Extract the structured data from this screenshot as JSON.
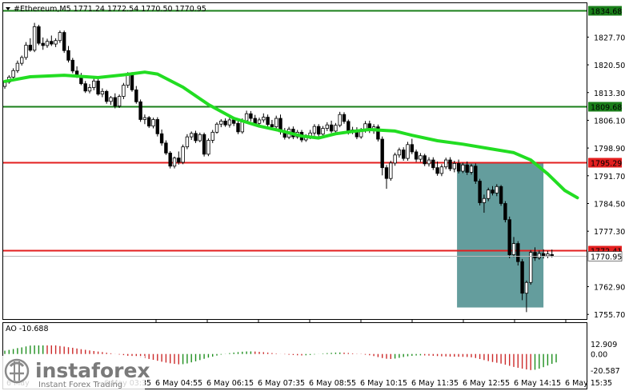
{
  "title": "#Ethereum,M5  1771.24 1772.54 1770.50 1770.95",
  "watermark": {
    "brand": "instaforex",
    "tagline": "Instant Forex Trading"
  },
  "colors": {
    "bull_candle": "#ffffff",
    "bear_candle": "#000000",
    "ma_line": "#22dd22",
    "green_level": "#1a7f1a",
    "red_level": "#e31e1e",
    "highlight_box": "#4f8f8f",
    "ao_up": "#1f8f1f",
    "ao_down": "#cc2a2a",
    "label_red_bg": "#e31e1e",
    "label_green_bg": "#1a7f1a"
  },
  "chart_data": [
    {
      "type": "candlestick",
      "title": "#Ethereum,M5  1771.24 1772.54 1770.50 1770.95",
      "symbol": "#Ethereum",
      "timeframe": "M5",
      "ohlc_header": {
        "open": 1771.24,
        "high": 1772.54,
        "low": 1770.5,
        "close": 1770.95
      },
      "y_ticks": [
        "1827.70",
        "1820.50",
        "1813.30",
        "1806.10",
        "1798.90",
        "1791.70",
        "1784.50",
        "1777.30",
        "1762.90",
        "1755.70"
      ],
      "x_ticks": [
        "6 May 04:55",
        "6 May 06:15",
        "6 May 07:35",
        "6 May 08:55",
        "6 May 10:15",
        "6 May 11:35",
        "6 May 12:55",
        "6 May 14:15",
        "6 May 15:35"
      ],
      "x_ticks_partial": [
        "6 May",
        "6 May 03:35"
      ],
      "ylim": [
        1754.5,
        1836.5
      ],
      "levels": [
        {
          "price": 1834.68,
          "label": "1834.68",
          "color": "green"
        },
        {
          "price": 1809.68,
          "label": "1809.68",
          "color": "green"
        },
        {
          "price": 1795.29,
          "label": "1795.29",
          "color": "red"
        },
        {
          "price": 1772.41,
          "label": "1772.41",
          "color": "red"
        }
      ],
      "current_price": {
        "value": 1770.95,
        "label": "1770.95"
      },
      "moving_average": [
        [
          0,
          1816.2
        ],
        [
          6,
          1817.4
        ],
        [
          14,
          1817.8
        ],
        [
          22,
          1817.2
        ],
        [
          28,
          1817.9
        ],
        [
          33,
          1818.6
        ],
        [
          36,
          1818.1
        ],
        [
          42,
          1814.7
        ],
        [
          48,
          1810.2
        ],
        [
          54,
          1806.6
        ],
        [
          60,
          1804.6
        ],
        [
          65,
          1803.4
        ],
        [
          70,
          1802.0
        ],
        [
          74,
          1801.5
        ],
        [
          78,
          1802.6
        ],
        [
          82,
          1803.2
        ],
        [
          86,
          1803.7
        ],
        [
          92,
          1803.3
        ],
        [
          96,
          1802.2
        ],
        [
          102,
          1800.8
        ],
        [
          108,
          1799.9
        ],
        [
          114,
          1798.8
        ],
        [
          120,
          1797.7
        ],
        [
          124,
          1795.8
        ],
        [
          128,
          1792.2
        ],
        [
          132,
          1787.9
        ],
        [
          135,
          1786.0
        ]
      ],
      "candles": [
        [
          0,
          1814.9,
          1816.4,
          1814.3,
          1816.0
        ],
        [
          1,
          1816.0,
          1817.8,
          1815.6,
          1817.3
        ],
        [
          2,
          1817.3,
          1819.6,
          1816.8,
          1819.0
        ],
        [
          3,
          1819.0,
          1821.6,
          1818.4,
          1820.9
        ],
        [
          4,
          1820.9,
          1822.9,
          1820.3,
          1822.4
        ],
        [
          5,
          1822.4,
          1826.4,
          1821.8,
          1825.6
        ],
        [
          6,
          1825.6,
          1827.4,
          1823.9,
          1824.3
        ],
        [
          7,
          1824.3,
          1831.4,
          1823.8,
          1830.4
        ],
        [
          8,
          1830.4,
          1830.9,
          1825.6,
          1826.1
        ],
        [
          9,
          1826.1,
          1827.6,
          1824.4,
          1825.5
        ],
        [
          10,
          1825.5,
          1827.3,
          1824.9,
          1826.6
        ],
        [
          11,
          1826.6,
          1828.1,
          1825.4,
          1825.9
        ],
        [
          12,
          1825.9,
          1827.4,
          1825.1,
          1826.8
        ],
        [
          13,
          1826.8,
          1829.4,
          1826.2,
          1828.9
        ],
        [
          14,
          1828.9,
          1829.4,
          1823.6,
          1824.2
        ],
        [
          15,
          1824.2,
          1825.4,
          1821.1,
          1821.7
        ],
        [
          16,
          1821.7,
          1822.3,
          1818.3,
          1818.9
        ],
        [
          17,
          1818.9,
          1820.1,
          1817.1,
          1817.7
        ],
        [
          18,
          1817.7,
          1818.4,
          1815.2,
          1815.6
        ],
        [
          19,
          1815.6,
          1816.3,
          1813.2,
          1813.7
        ],
        [
          20,
          1813.7,
          1815.5,
          1813.1,
          1814.6
        ],
        [
          21,
          1814.6,
          1817.2,
          1813.9,
          1816.3
        ],
        [
          22,
          1816.3,
          1817.0,
          1812.5,
          1812.9
        ],
        [
          23,
          1812.9,
          1814.4,
          1812.1,
          1813.6
        ],
        [
          24,
          1813.6,
          1814.0,
          1810.4,
          1811.0
        ],
        [
          25,
          1811.0,
          1812.4,
          1810.1,
          1812.0
        ],
        [
          26,
          1812.0,
          1813.1,
          1809.2,
          1809.8
        ],
        [
          27,
          1809.8,
          1812.8,
          1809.3,
          1812.3
        ],
        [
          28,
          1812.3,
          1815.8,
          1811.6,
          1815.2
        ],
        [
          29,
          1815.2,
          1818.6,
          1814.5,
          1817.9
        ],
        [
          30,
          1817.9,
          1818.6,
          1813.5,
          1814.0
        ],
        [
          31,
          1814.0,
          1815.0,
          1810.4,
          1810.9
        ],
        [
          32,
          1810.9,
          1811.5,
          1805.7,
          1806.3
        ],
        [
          33,
          1806.3,
          1807.6,
          1805.1,
          1806.8
        ],
        [
          34,
          1806.8,
          1807.2,
          1804.1,
          1804.6
        ],
        [
          35,
          1804.6,
          1806.8,
          1804.0,
          1806.3
        ],
        [
          36,
          1806.3,
          1806.9,
          1801.9,
          1802.6
        ],
        [
          37,
          1802.6,
          1803.7,
          1799.5,
          1800.2
        ],
        [
          38,
          1800.2,
          1800.9,
          1797.1,
          1797.6
        ],
        [
          39,
          1797.6,
          1798.1,
          1793.6,
          1794.2
        ],
        [
          40,
          1794.2,
          1796.7,
          1793.6,
          1796.3
        ],
        [
          41,
          1796.3,
          1798.0,
          1794.6,
          1795.2
        ],
        [
          42,
          1795.2,
          1799.8,
          1794.7,
          1799.2
        ],
        [
          43,
          1799.2,
          1802.5,
          1798.6,
          1801.8
        ],
        [
          44,
          1801.8,
          1803.2,
          1801.0,
          1802.7
        ],
        [
          45,
          1802.7,
          1803.4,
          1800.2,
          1800.8
        ],
        [
          46,
          1800.8,
          1802.9,
          1800.4,
          1802.4
        ],
        [
          47,
          1802.4,
          1802.9,
          1796.7,
          1797.3
        ],
        [
          48,
          1797.3,
          1801.4,
          1796.8,
          1800.9
        ],
        [
          49,
          1800.9,
          1803.6,
          1800.2,
          1803.0
        ],
        [
          50,
          1803.0,
          1805.6,
          1802.6,
          1805.1
        ],
        [
          51,
          1805.1,
          1806.4,
          1804.3,
          1805.9
        ],
        [
          52,
          1805.9,
          1806.6,
          1804.4,
          1804.9
        ],
        [
          53,
          1804.9,
          1806.8,
          1804.2,
          1806.2
        ],
        [
          54,
          1806.2,
          1807.0,
          1804.6,
          1805.3
        ],
        [
          55,
          1805.3,
          1805.9,
          1802.5,
          1803.1
        ],
        [
          56,
          1803.1,
          1806.6,
          1802.6,
          1806.0
        ],
        [
          57,
          1806.0,
          1808.6,
          1805.5,
          1807.8
        ],
        [
          58,
          1807.8,
          1808.5,
          1805.8,
          1806.6
        ],
        [
          59,
          1806.6,
          1807.5,
          1804.8,
          1805.3
        ],
        [
          60,
          1805.3,
          1806.8,
          1804.7,
          1806.2
        ],
        [
          61,
          1806.2,
          1807.9,
          1805.5,
          1806.9
        ],
        [
          62,
          1806.9,
          1807.6,
          1804.4,
          1805.0
        ],
        [
          63,
          1805.0,
          1806.2,
          1803.6,
          1804.4
        ],
        [
          64,
          1804.4,
          1807.3,
          1804.0,
          1806.6
        ],
        [
          65,
          1806.6,
          1807.6,
          1802.4,
          1803.1
        ],
        [
          66,
          1803.1,
          1804.1,
          1801.1,
          1801.7
        ],
        [
          67,
          1801.7,
          1804.4,
          1801.2,
          1803.8
        ],
        [
          68,
          1803.8,
          1804.5,
          1801.2,
          1801.8
        ],
        [
          69,
          1801.8,
          1803.6,
          1801.3,
          1803.0
        ],
        [
          70,
          1803.0,
          1803.6,
          1800.4,
          1801.0
        ],
        [
          71,
          1801.0,
          1802.5,
          1800.5,
          1801.9
        ],
        [
          72,
          1801.9,
          1803.6,
          1801.2,
          1802.8
        ],
        [
          73,
          1802.8,
          1805.1,
          1802.1,
          1804.5
        ],
        [
          74,
          1804.5,
          1805.1,
          1801.9,
          1802.5
        ],
        [
          75,
          1802.5,
          1804.6,
          1802.0,
          1804.0
        ],
        [
          76,
          1804.0,
          1805.6,
          1803.3,
          1804.9
        ],
        [
          77,
          1804.9,
          1806.0,
          1802.8,
          1803.3
        ],
        [
          78,
          1803.3,
          1805.4,
          1802.9,
          1804.8
        ],
        [
          79,
          1804.8,
          1808.3,
          1804.3,
          1807.6
        ],
        [
          80,
          1807.6,
          1808.2,
          1805.2,
          1805.8
        ],
        [
          81,
          1805.8,
          1806.3,
          1802.4,
          1803.1
        ],
        [
          82,
          1803.1,
          1804.4,
          1802.5,
          1803.6
        ],
        [
          83,
          1803.6,
          1804.3,
          1801.2,
          1801.8
        ],
        [
          84,
          1801.8,
          1804.1,
          1801.3,
          1803.5
        ],
        [
          85,
          1803.5,
          1805.9,
          1802.9,
          1805.2
        ],
        [
          86,
          1805.2,
          1806.0,
          1802.8,
          1803.4
        ],
        [
          87,
          1803.4,
          1805.1,
          1802.6,
          1804.4
        ],
        [
          88,
          1804.4,
          1805.0,
          1800.6,
          1801.2
        ],
        [
          89,
          1801.2,
          1801.9,
          1791.8,
          1793.8
        ],
        [
          90,
          1793.8,
          1794.5,
          1788.3,
          1791.0
        ],
        [
          91,
          1791.0,
          1795.6,
          1790.4,
          1795.0
        ],
        [
          92,
          1795.0,
          1797.7,
          1794.3,
          1797.1
        ],
        [
          93,
          1797.1,
          1799.0,
          1796.4,
          1798.4
        ],
        [
          94,
          1798.4,
          1799.1,
          1795.6,
          1796.2
        ],
        [
          95,
          1796.2,
          1800.5,
          1795.6,
          1799.8
        ],
        [
          96,
          1799.8,
          1801.3,
          1797.3,
          1797.9
        ],
        [
          97,
          1797.9,
          1798.5,
          1795.3,
          1796.0
        ],
        [
          98,
          1796.0,
          1797.6,
          1795.3,
          1796.9
        ],
        [
          99,
          1796.9,
          1797.4,
          1794.2,
          1794.8
        ],
        [
          100,
          1794.8,
          1796.5,
          1794.1,
          1795.8
        ],
        [
          101,
          1795.8,
          1796.5,
          1793.2,
          1793.8
        ],
        [
          102,
          1793.8,
          1795.4,
          1791.7,
          1792.3
        ],
        [
          103,
          1792.3,
          1794.7,
          1791.6,
          1794.0
        ],
        [
          104,
          1794.0,
          1796.4,
          1793.4,
          1795.8
        ],
        [
          105,
          1795.8,
          1796.5,
          1792.9,
          1793.5
        ],
        [
          106,
          1793.5,
          1795.6,
          1792.6,
          1794.9
        ],
        [
          107,
          1794.9,
          1795.9,
          1792.3,
          1792.9
        ],
        [
          108,
          1792.9,
          1795.1,
          1792.4,
          1794.5
        ],
        [
          109,
          1794.5,
          1795.4,
          1791.9,
          1792.6
        ],
        [
          110,
          1792.6,
          1794.8,
          1792.0,
          1794.2
        ],
        [
          111,
          1794.2,
          1794.9,
          1789.6,
          1790.3
        ],
        [
          112,
          1790.3,
          1790.9,
          1784.0,
          1784.7
        ],
        [
          113,
          1784.7,
          1786.8,
          1782.1,
          1785.8
        ],
        [
          114,
          1785.8,
          1788.6,
          1785.1,
          1788.0
        ],
        [
          115,
          1788.0,
          1789.0,
          1786.6,
          1787.2
        ],
        [
          116,
          1787.2,
          1789.5,
          1786.4,
          1788.9
        ],
        [
          117,
          1788.9,
          1789.3,
          1783.9,
          1784.5
        ],
        [
          118,
          1784.5,
          1785.1,
          1779.6,
          1780.3
        ],
        [
          119,
          1780.3,
          1781.1,
          1770.3,
          1771.2
        ],
        [
          120,
          1771.2,
          1775.8,
          1770.6,
          1774.1
        ],
        [
          121,
          1774.1,
          1774.7,
          1768.4,
          1769.4
        ],
        [
          122,
          1769.4,
          1770.1,
          1759.4,
          1761.2
        ],
        [
          123,
          1761.2,
          1764.5,
          1756.3,
          1764.0
        ],
        [
          124,
          1764.0,
          1772.4,
          1763.4,
          1771.8
        ],
        [
          125,
          1771.8,
          1773.1,
          1769.6,
          1770.4
        ],
        [
          126,
          1770.4,
          1772.3,
          1769.9,
          1771.5
        ],
        [
          127,
          1771.5,
          1772.6,
          1770.2,
          1770.9
        ],
        [
          128,
          1770.9,
          1772.2,
          1770.3,
          1771.4
        ],
        [
          129,
          1771.24,
          1772.54,
          1770.5,
          1770.95
        ]
      ],
      "highlight_zone": {
        "from_bar": 107,
        "to_bar": 127,
        "top": 1795.0,
        "bottom": 1757.5
      }
    },
    {
      "type": "bar",
      "title": "AO -10.688",
      "indicator": "AO",
      "last_value": -10.688,
      "y_ticks": [
        "12.909",
        "0.00",
        "-20.587"
      ],
      "ylim": [
        -20.587,
        12.909
      ],
      "values": [
        4.2,
        5.2,
        6.3,
        7.5,
        8.4,
        9.6,
        10.7,
        11.9,
        12.8,
        12.9,
        12.4,
        11.7,
        10.9,
        10.1,
        9.4,
        8.6,
        7.9,
        7.0,
        6.1,
        5.3,
        4.5,
        3.8,
        3.1,
        2.4,
        1.6,
        0.9,
        0.1,
        -0.7,
        -1.4,
        -2.2,
        -3.0,
        -3.7,
        -4.6,
        -5.4,
        -6.3,
        -7.4,
        -8.6,
        -9.8,
        -10.9,
        -11.8,
        -12.5,
        -13.1,
        -12.9,
        -12.0,
        -10.6,
        -9.3,
        -7.7,
        -6.1,
        -4.6,
        -3.3,
        -2.0,
        -0.8,
        0.2,
        1.1,
        1.8,
        2.4,
        2.9,
        3.2,
        3.3,
        3.1,
        2.7,
        2.3,
        1.8,
        1.2,
        0.6,
        0.1,
        -0.4,
        -0.9,
        -1.3,
        -1.6,
        -1.8,
        -1.6,
        -1.2,
        -0.6,
        -0.1,
        0.6,
        1.1,
        1.5,
        1.8,
        1.9,
        1.7,
        1.3,
        0.8,
        0.3,
        -0.3,
        -0.9,
        -1.6,
        -2.6,
        -3.9,
        -5.1,
        -6.0,
        -6.3,
        -5.8,
        -4.9,
        -3.8,
        -2.9,
        -2.3,
        -1.9,
        -1.7,
        -1.8,
        -2.0,
        -2.3,
        -2.6,
        -2.9,
        -3.1,
        -3.3,
        -3.4,
        -3.5,
        -3.6,
        -3.8,
        -4.2,
        -5.1,
        -6.4,
        -7.7,
        -9.0,
        -10.2,
        -11.1,
        -12.2,
        -13.6,
        -15.0,
        -16.4,
        -17.5,
        -18.6,
        -19.6,
        -20.4,
        -20.0,
        -18.6,
        -16.7,
        -14.6,
        -12.5,
        -10.688
      ]
    }
  ]
}
